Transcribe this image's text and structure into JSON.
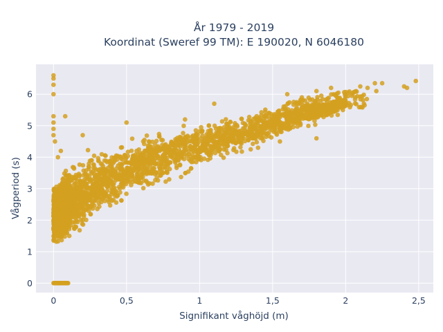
{
  "chart_data": {
    "type": "scatter",
    "title_line1": "År 1979 - 2019",
    "title_line2": "Koordinat (Sweref 99 TM): E 190020, N 6046180",
    "xlabel": "Signifikant våghöjd (m)",
    "ylabel": "Vågperiod (s)",
    "xlim": [
      -0.12,
      2.6
    ],
    "ylim": [
      -0.3,
      6.95
    ],
    "x_ticks": [
      0,
      0.5,
      1,
      1.5,
      2,
      2.5
    ],
    "x_tick_labels": [
      "0",
      "0,5",
      "1",
      "1,5",
      "2",
      "2,5"
    ],
    "y_ticks": [
      0,
      1,
      2,
      3,
      4,
      5,
      6
    ],
    "y_tick_labels": [
      "0",
      "1",
      "2",
      "3",
      "4",
      "5",
      "6"
    ],
    "grid": true,
    "marker_color": "#d4a020",
    "background_color": "#e9e9f2",
    "density_envelope": [
      {
        "x": 0.0,
        "ymin": 1.05,
        "ymax": 3.3
      },
      {
        "x": 0.05,
        "ymin": 1.05,
        "ymax": 3.6
      },
      {
        "x": 0.1,
        "ymin": 1.15,
        "ymax": 3.9
      },
      {
        "x": 0.2,
        "ymin": 1.5,
        "ymax": 4.2
      },
      {
        "x": 0.3,
        "ymin": 1.85,
        "ymax": 4.4
      },
      {
        "x": 0.5,
        "ymin": 2.5,
        "ymax": 4.65
      },
      {
        "x": 0.7,
        "ymin": 3.0,
        "ymax": 4.9
      },
      {
        "x": 1.0,
        "ymin": 3.55,
        "ymax": 5.2
      },
      {
        "x": 1.2,
        "ymin": 3.95,
        "ymax": 5.4
      },
      {
        "x": 1.4,
        "ymin": 4.3,
        "ymax": 5.55
      },
      {
        "x": 1.6,
        "ymin": 4.65,
        "ymax": 5.75
      },
      {
        "x": 1.8,
        "ymin": 5.0,
        "ymax": 5.95
      },
      {
        "x": 2.0,
        "ymin": 5.35,
        "ymax": 6.1
      }
    ],
    "zero_period_points": {
      "x_range": [
        0,
        0.1
      ],
      "y": 0
    },
    "outliers": [
      {
        "x": 0.0,
        "y": 6.6
      },
      {
        "x": 0.0,
        "y": 6.5
      },
      {
        "x": 0.0,
        "y": 6.3
      },
      {
        "x": 0.0,
        "y": 6.0
      },
      {
        "x": 0.0,
        "y": 5.3
      },
      {
        "x": 0.0,
        "y": 5.1
      },
      {
        "x": 0.0,
        "y": 4.9
      },
      {
        "x": 0.0,
        "y": 4.7
      },
      {
        "x": 0.01,
        "y": 4.5
      },
      {
        "x": 0.08,
        "y": 5.3
      },
      {
        "x": 0.03,
        "y": 4.0
      },
      {
        "x": 0.05,
        "y": 4.2
      },
      {
        "x": 0.2,
        "y": 4.7
      },
      {
        "x": 0.5,
        "y": 5.1
      },
      {
        "x": 0.9,
        "y": 5.2
      },
      {
        "x": 1.1,
        "y": 5.7
      },
      {
        "x": 1.6,
        "y": 6.0
      },
      {
        "x": 1.7,
        "y": 5.9
      },
      {
        "x": 1.8,
        "y": 6.1
      },
      {
        "x": 1.9,
        "y": 6.2
      },
      {
        "x": 1.95,
        "y": 6.05
      },
      {
        "x": 2.1,
        "y": 6.25
      },
      {
        "x": 2.15,
        "y": 6.2
      },
      {
        "x": 2.2,
        "y": 6.35
      },
      {
        "x": 2.25,
        "y": 6.35
      },
      {
        "x": 2.21,
        "y": 6.1
      },
      {
        "x": 2.4,
        "y": 6.25
      },
      {
        "x": 2.42,
        "y": 6.2
      },
      {
        "x": 2.48,
        "y": 6.42
      },
      {
        "x": 1.8,
        "y": 4.6
      },
      {
        "x": 1.55,
        "y": 4.5
      },
      {
        "x": 1.4,
        "y": 4.3
      },
      {
        "x": 1.35,
        "y": 4.25
      }
    ]
  }
}
